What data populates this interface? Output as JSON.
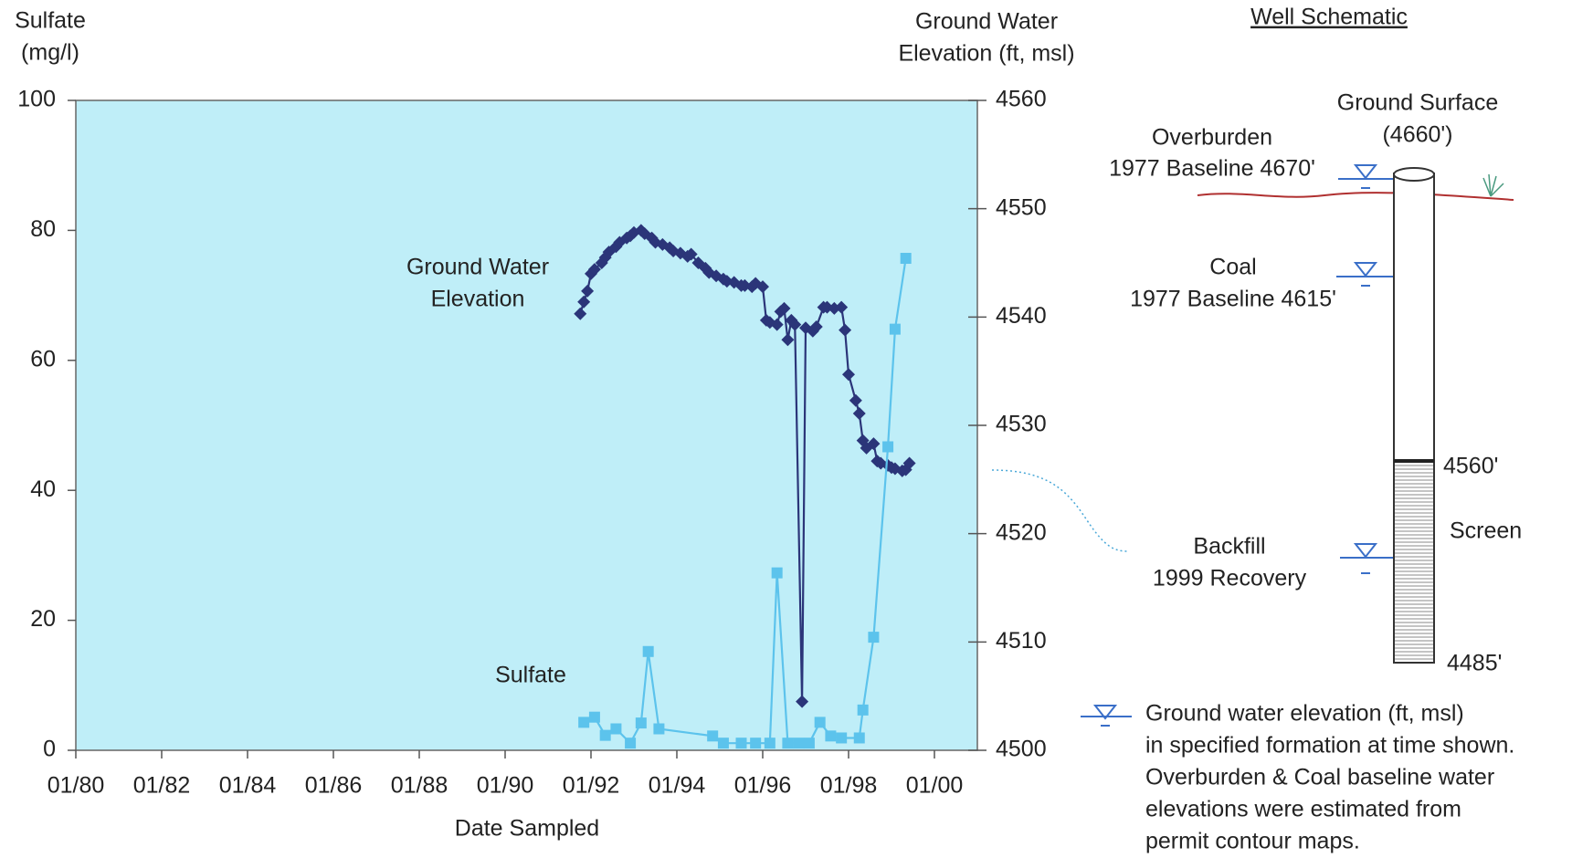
{
  "chart_data": {
    "type": "line",
    "ylabel": [
      "Sulfate",
      "(mg/l)"
    ],
    "y2label": [
      "Ground Water",
      "Elevation (ft, msl)"
    ],
    "xlabel": "Date Sampled",
    "annotations": [
      {
        "lines": [
          "Ground Water",
          "Elevation"
        ]
      },
      {
        "lines": [
          "Sulfate"
        ]
      }
    ],
    "xlim": [
      "1980-01",
      "2001-01"
    ],
    "xticks": [
      {
        "value": "1980-01",
        "label": "01/80"
      },
      {
        "value": "1982-01",
        "label": "01/82"
      },
      {
        "value": "1984-01",
        "label": "01/84"
      },
      {
        "value": "1986-01",
        "label": "01/86"
      },
      {
        "value": "1988-01",
        "label": "01/88"
      },
      {
        "value": "1990-01",
        "label": "01/90"
      },
      {
        "value": "1992-01",
        "label": "01/92"
      },
      {
        "value": "1994-01",
        "label": "01/94"
      },
      {
        "value": "1996-01",
        "label": "01/96"
      },
      {
        "value": "1998-01",
        "label": "01/98"
      },
      {
        "value": "2000-01",
        "label": "01/00"
      }
    ],
    "ylim": [
      0,
      100
    ],
    "yticks": [
      0,
      20,
      40,
      60,
      80,
      100
    ],
    "y2lim": [
      4500,
      4560
    ],
    "y2ticks": [
      4500,
      4510,
      4520,
      4530,
      4540,
      4550,
      4560
    ],
    "background": "#bfeef8",
    "series": [
      {
        "color": "#2b3579",
        "marker": "diamond",
        "axis": "y2",
        "x": [
          "1991-10",
          "1991-11",
          "1991-12",
          "1992-01",
          "1992-02",
          "1992-04",
          "1992-05",
          "1992-06",
          "1992-08",
          "1992-09",
          "1992-11",
          "1992-12",
          "1993-01",
          "1993-03",
          "1993-04",
          "1993-06",
          "1993-07",
          "1993-09",
          "1993-11",
          "1993-12",
          "1994-02",
          "1994-04",
          "1994-05",
          "1994-07",
          "1994-09",
          "1994-10",
          "1994-12",
          "1995-02",
          "1995-03",
          "1995-05",
          "1995-07",
          "1995-08",
          "1995-10",
          "1995-11",
          "1996-01",
          "1996-02",
          "1996-03",
          "1996-05",
          "1996-06",
          "1996-07",
          "1996-08",
          "1996-09",
          "1996-10",
          "1996-12",
          "1997-01",
          "1997-03",
          "1997-04",
          "1997-06",
          "1997-07",
          "1997-09",
          "1997-11",
          "1997-12",
          "1998-01",
          "1998-03",
          "1998-04",
          "1998-05",
          "1998-06",
          "1998-08",
          "1998-09",
          "1998-10",
          "1998-12",
          "1999-01",
          "1999-02",
          "1999-04",
          "1999-05",
          "1999-06"
        ],
        "values": [
          4540.3,
          4541.4,
          4542.4,
          4544.0,
          4544.4,
          4545.0,
          4545.5,
          4546.0,
          4546.5,
          4546.9,
          4547.3,
          4547.5,
          4547.8,
          4548.0,
          4547.7,
          4547.3,
          4546.9,
          4546.7,
          4546.4,
          4546.1,
          4545.9,
          4545.6,
          4545.8,
          4545.0,
          4544.5,
          4544.1,
          4543.8,
          4543.5,
          4543.3,
          4543.2,
          4542.9,
          4542.9,
          4542.8,
          4543.1,
          4542.8,
          4539.7,
          4539.5,
          4539.3,
          4540.5,
          4540.8,
          4537.9,
          4539.7,
          4539.3,
          4504.5,
          4539.0,
          4538.7,
          4539.1,
          4540.9,
          4540.9,
          4540.8,
          4540.9,
          4538.8,
          4534.7,
          4532.3,
          4531.1,
          4528.6,
          4527.9,
          4528.3,
          4526.7,
          4526.5,
          4526.3,
          4526.1,
          4526.0,
          4525.8,
          4525.9,
          4526.5
        ]
      },
      {
        "color": "#5cc3ec",
        "marker": "square",
        "axis": "y",
        "x": [
          "1991-11",
          "1992-02",
          "1992-05",
          "1992-08",
          "1992-12",
          "1993-03",
          "1993-05",
          "1993-08",
          "1994-11",
          "1995-02",
          "1995-07",
          "1995-11",
          "1996-03",
          "1996-05",
          "1996-08",
          "1996-11",
          "1997-02",
          "1997-05",
          "1997-08",
          "1997-11",
          "1998-04",
          "1998-05",
          "1998-08",
          "1998-12",
          "1999-02",
          "1999-05"
        ],
        "values": [
          4.3,
          5.1,
          2.3,
          3.3,
          1.1,
          4.2,
          15.2,
          3.3,
          2.2,
          1.1,
          1.1,
          1.1,
          1.1,
          27.3,
          1.1,
          1.1,
          1.1,
          4.3,
          2.2,
          1.9,
          1.9,
          6.2,
          17.4,
          46.7,
          64.8,
          75.7
        ]
      }
    ]
  },
  "well_schematic": {
    "title": "Well Schematic",
    "ground_surface": [
      "Ground Surface",
      "(4660')"
    ],
    "overburden": [
      "Overburden",
      "1977 Baseline 4670'"
    ],
    "coal": [
      "Coal",
      "1977 Baseline 4615'"
    ],
    "backfill": [
      "Backfill",
      "1999 Recovery"
    ],
    "screen_top": "4560'",
    "screen": "Screen",
    "screen_bottom": "4485'",
    "legend": [
      "Ground water elevation (ft, msl)",
      "in specified formation at time shown.",
      "Overburden & Coal baseline water",
      "elevations were estimated from",
      "permit contour maps."
    ]
  }
}
